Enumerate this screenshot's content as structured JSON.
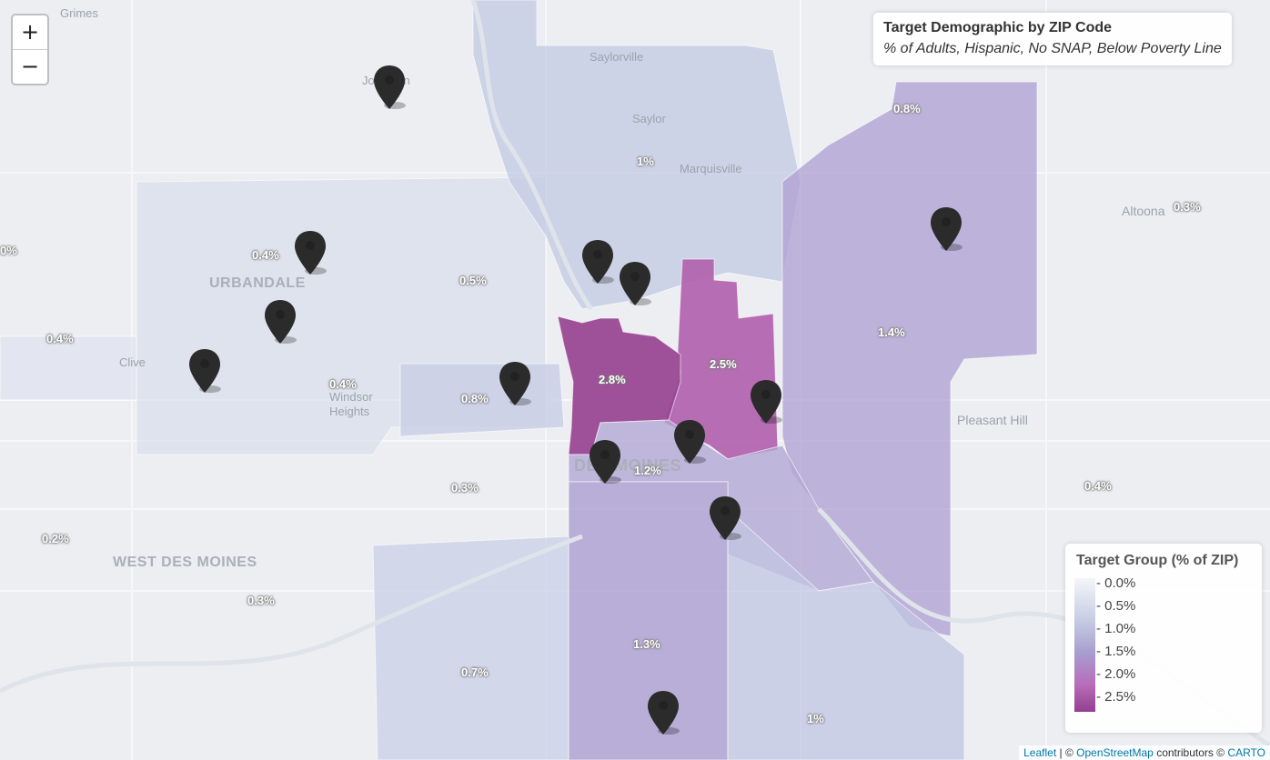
{
  "map": {
    "title": "Target Demographic by ZIP Code",
    "subtitle": "% of Adults, Hispanic, No SNAP, Below Poverty Line",
    "zoom": {
      "in_label": "+",
      "out_label": "−"
    },
    "places": {
      "grimes": "Grimes",
      "johnston": "Johnston",
      "saylorville": "Saylorville",
      "saylor": "Saylor",
      "marquisville": "Marquisville",
      "urbandale": "URBANDALE",
      "clive": "Clive",
      "windsor_heights": "Windsor Heights",
      "des_moines": "DES MOINES",
      "altoona": "Altoona",
      "pleasant_hill": "Pleasant Hill",
      "west_des_moines": "WEST DES MOINES"
    },
    "zip_labels": {
      "saylor": "1%",
      "northeast_top": "0.8%",
      "altoona": "0.3%",
      "west_edge": "0%",
      "urbandale": "0.4%",
      "north_central": "0.5%",
      "clive": "0.4%",
      "windsor": "0.4%",
      "central_west": "0.8%",
      "central_north": "2.8%",
      "east_central": "2.5%",
      "east": "1.4%",
      "downtown": "1.2%",
      "southwest": "0.3%",
      "pleasant_hill_east": "0.4%",
      "west_des_moines_west": "0.2%",
      "west_des_moines_south": "0.3%",
      "south": "1.3%",
      "south_west": "0.7%",
      "southeast": "1%"
    },
    "legend": {
      "title": "Target Group (% of ZIP)",
      "ticks": [
        "0.0%",
        "0.5%",
        "1.0%",
        "1.5%",
        "2.0%",
        "2.5%"
      ],
      "colors": {
        "low": "#f4f6fa",
        "mid": "#a89fd0",
        "high": "#923f8e"
      }
    },
    "attribution": {
      "leaflet": "Leaflet",
      "sep": "| ©",
      "osm": "OpenStreetMap",
      "contributors": "contributors ©",
      "carto": "CARTO"
    },
    "marker_count": 14
  }
}
